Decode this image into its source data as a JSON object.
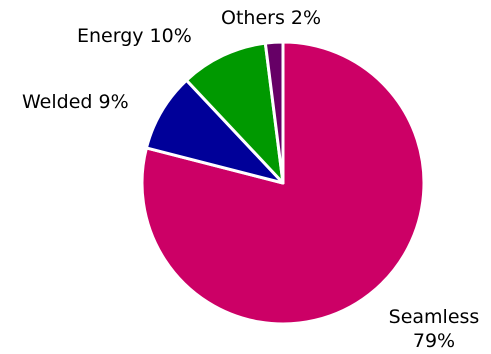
{
  "chart_data": {
    "type": "pie",
    "start_angle_deg": 0,
    "direction": "clockwise",
    "slices": [
      {
        "label": "Seamless",
        "value": 79,
        "value_text": "79%",
        "color": "#cc0066"
      },
      {
        "label": "Welded",
        "value": 9,
        "value_text": "9%",
        "color": "#000099"
      },
      {
        "label": "Energy",
        "value": 10,
        "value_text": "10%",
        "color": "#009900"
      },
      {
        "label": "Others",
        "value": 2,
        "value_text": "2%",
        "color": "#660066"
      }
    ]
  }
}
